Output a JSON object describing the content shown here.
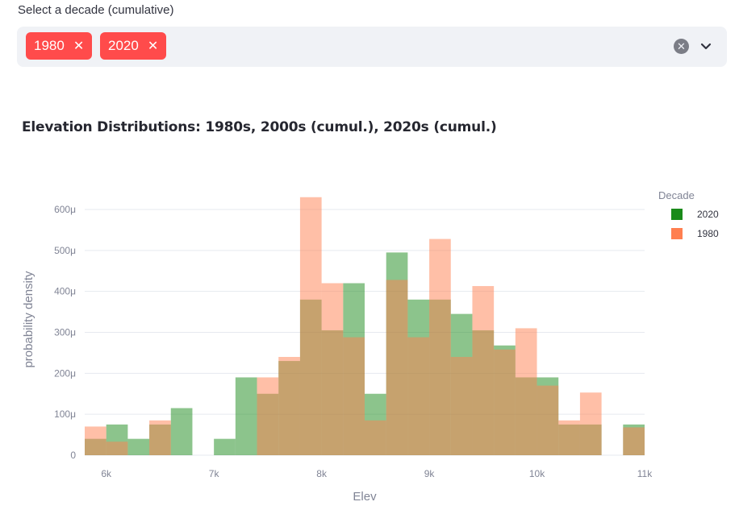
{
  "selector": {
    "label": "Select a decade (cumulative)",
    "tags": [
      "1980",
      "2020"
    ],
    "remove_glyph": "✕",
    "clear_glyph": "✕"
  },
  "chart_data": {
    "type": "bar",
    "title": "Elevation Distributions: 1980s, 2000s (cumul.), 2020s (cumul.)",
    "xlabel": "Elev",
    "ylabel": "probability density",
    "xlim": [
      5800,
      11000
    ],
    "ylim": [
      0,
      0.0006
    ],
    "xticks": [
      {
        "v": 6000,
        "t": "6k"
      },
      {
        "v": 7000,
        "t": "7k"
      },
      {
        "v": 8000,
        "t": "8k"
      },
      {
        "v": 9000,
        "t": "9k"
      },
      {
        "v": 10000,
        "t": "10k"
      },
      {
        "v": 11000,
        "t": "11k"
      }
    ],
    "yticks": [
      {
        "v": 0,
        "t": "0"
      },
      {
        "v": 0.0001,
        "t": "100μ"
      },
      {
        "v": 0.0002,
        "t": "200μ"
      },
      {
        "v": 0.0003,
        "t": "300μ"
      },
      {
        "v": 0.0004,
        "t": "400μ"
      },
      {
        "v": 0.0005,
        "t": "500μ"
      },
      {
        "v": 0.0006,
        "t": "600μ"
      }
    ],
    "bin_edges": [
      5800,
      6000,
      6200,
      6400,
      6600,
      6800,
      7000,
      7200,
      7400,
      7600,
      7800,
      8000,
      8200,
      8400,
      8600,
      8800,
      9000,
      9200,
      9400,
      9600,
      9800,
      10000,
      10200,
      10400,
      10600,
      10800,
      11000
    ],
    "series": [
      {
        "name": "2020",
        "color": "#1a8a1a",
        "opacity": 0.5,
        "values": [
          4e-05,
          7.5e-05,
          4e-05,
          7.5e-05,
          0.000115,
          0,
          4e-05,
          0.00019,
          0.00015,
          0.00023,
          0.00038,
          0.000305,
          0.00042,
          0.00015,
          0.000495,
          0.00038,
          0.00038,
          0.000345,
          0.000305,
          0.000268,
          0.00019,
          0.00019,
          7.5e-05,
          7.5e-05,
          0,
          7.5e-05
        ]
      },
      {
        "name": "1980",
        "color": "#ff7f50",
        "opacity": 0.5,
        "values": [
          7e-05,
          3.3e-05,
          0,
          8.5e-05,
          0,
          0,
          0,
          0,
          0.00019,
          0.00024,
          0.00063,
          0.00042,
          0.000288,
          8.5e-05,
          0.000428,
          0.000288,
          0.000528,
          0.00024,
          0.000413,
          0.000258,
          0.00031,
          0.00017,
          8.5e-05,
          0.000153,
          0,
          6.8e-05
        ]
      }
    ],
    "legend": {
      "title": "Decade",
      "placement": "top-right"
    },
    "grid": true
  }
}
